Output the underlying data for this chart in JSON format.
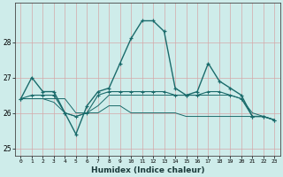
{
  "xlabel": "Humidex (Indice chaleur)",
  "bg_color": "#ceecea",
  "grid_color": "#d4a8a8",
  "line_color": "#1a6b6b",
  "xlim": [
    -0.5,
    23.5
  ],
  "ylim": [
    24.8,
    29.1
  ],
  "yticks": [
    25,
    26,
    27,
    28
  ],
  "xticks": [
    0,
    1,
    2,
    3,
    4,
    5,
    6,
    7,
    8,
    9,
    10,
    11,
    12,
    13,
    14,
    15,
    16,
    17,
    18,
    19,
    20,
    21,
    22,
    23
  ],
  "series1": [
    26.4,
    27.0,
    26.6,
    26.6,
    26.0,
    25.4,
    26.2,
    26.6,
    26.7,
    27.4,
    28.1,
    28.6,
    28.6,
    28.3,
    26.7,
    26.5,
    26.6,
    27.4,
    26.9,
    26.7,
    26.5,
    25.9,
    25.9,
    25.8
  ],
  "series2": [
    26.4,
    26.5,
    26.5,
    26.5,
    26.0,
    25.9,
    26.0,
    26.5,
    26.6,
    26.6,
    26.6,
    26.6,
    26.6,
    26.6,
    26.5,
    26.5,
    26.5,
    26.6,
    26.6,
    26.5,
    26.4,
    25.9,
    25.9,
    25.8
  ],
  "series3": [
    26.4,
    26.4,
    26.4,
    26.4,
    26.4,
    26.0,
    26.0,
    26.2,
    26.5,
    26.5,
    26.5,
    26.5,
    26.5,
    26.5,
    26.5,
    26.5,
    26.5,
    26.5,
    26.5,
    26.5,
    26.4,
    26.0,
    25.9,
    25.8
  ],
  "series4": [
    26.4,
    26.4,
    26.4,
    26.3,
    26.0,
    25.9,
    26.0,
    26.0,
    26.2,
    26.2,
    26.0,
    26.0,
    26.0,
    26.0,
    26.0,
    25.9,
    25.9,
    25.9,
    25.9,
    25.9,
    25.9,
    25.9,
    25.9,
    25.8
  ]
}
